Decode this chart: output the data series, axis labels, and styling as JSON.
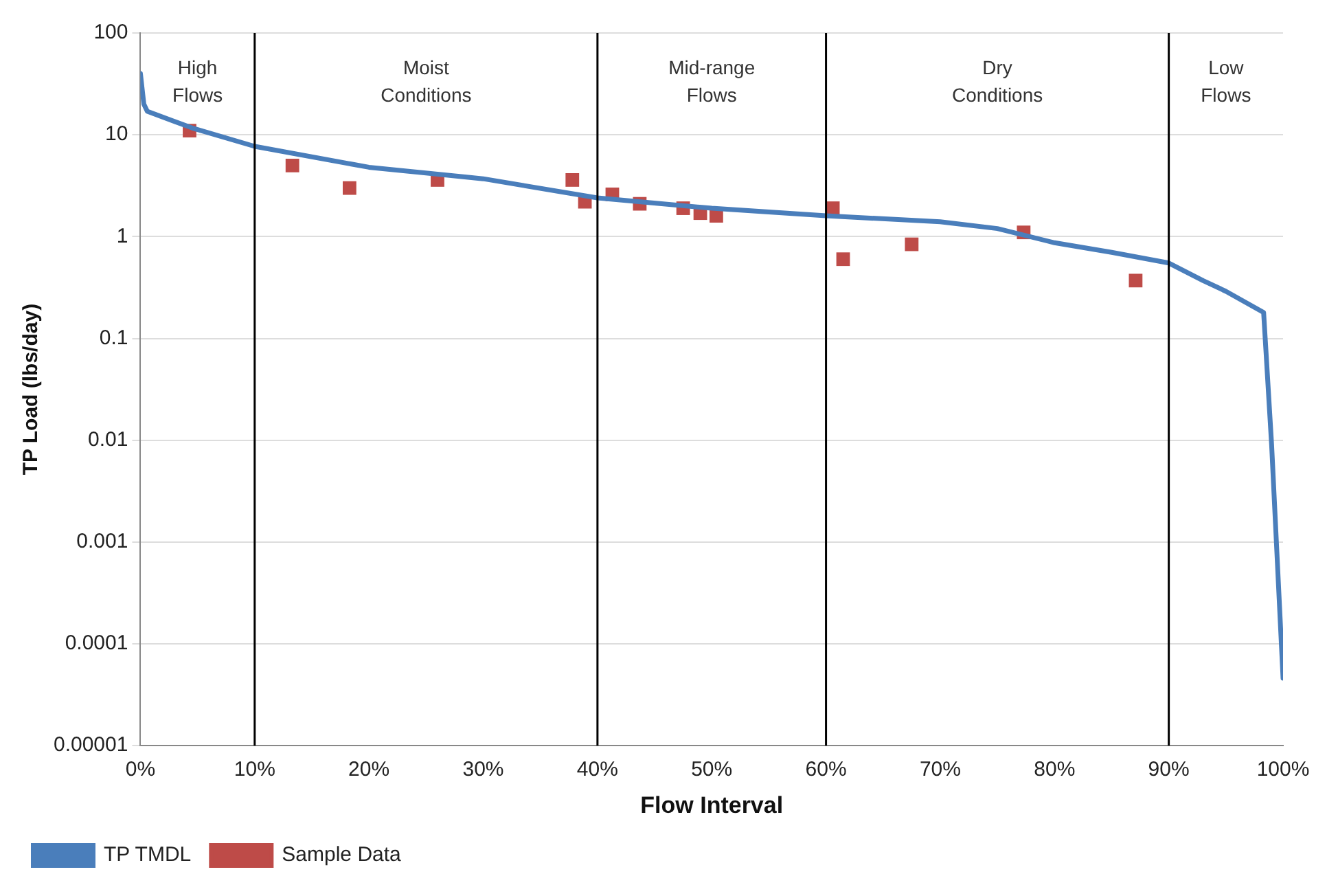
{
  "chart_data": {
    "type": "line",
    "xlabel": "Flow Interval",
    "ylabel": "TP Load (lbs/day)",
    "log": "y",
    "grid": "y",
    "legend": "bottom left",
    "xlim": [
      0,
      100
    ],
    "xticks": [
      {
        "value": 0,
        "label": "0%"
      },
      {
        "value": 10,
        "label": "10%"
      },
      {
        "value": 20,
        "label": "20%"
      },
      {
        "value": 30,
        "label": "30%"
      },
      {
        "value": 40,
        "label": "40%"
      },
      {
        "value": 50,
        "label": "50%"
      },
      {
        "value": 60,
        "label": "60%"
      },
      {
        "value": 70,
        "label": "70%"
      },
      {
        "value": 80,
        "label": "80%"
      },
      {
        "value": 90,
        "label": "90%"
      },
      {
        "value": 100,
        "label": "100%"
      }
    ],
    "ylim": [
      1e-05,
      100
    ],
    "yticks": [
      {
        "value": 1e-05,
        "label": "0.00001"
      },
      0.0001,
      0.001,
      0.01,
      0.1,
      1,
      10,
      100
    ],
    "ref_lines": [
      {
        "axis": "x",
        "value": 10,
        "color": "#000000"
      },
      {
        "axis": "x",
        "value": 40,
        "color": "#000000"
      },
      {
        "axis": "x",
        "value": 60,
        "color": "#000000"
      },
      {
        "axis": "x",
        "value": 90,
        "color": "#000000"
      }
    ],
    "annotations": [
      "High Flows",
      "Moist Conditions",
      "Mid-range Flows",
      "Dry Conditions",
      "Low Flows"
    ],
    "series": [
      {
        "name": "TP TMDL",
        "marker": "none",
        "color": "#4a7ebb",
        "x": [
          0,
          0.3,
          0.6,
          4.5,
          10,
          20,
          30,
          40,
          50,
          60,
          70,
          75,
          80,
          85,
          90,
          93,
          95,
          98.3,
          99,
          100
        ],
        "values": [
          40,
          20,
          17,
          11.7,
          7.7,
          4.8,
          3.7,
          2.4,
          1.9,
          1.6,
          1.4,
          1.2,
          0.87,
          0.7,
          0.55,
          0.37,
          0.29,
          0.18,
          0.009,
          4.6e-05
        ]
      },
      {
        "name": "Sample Data",
        "type": "scatter",
        "marker": "square",
        "color": "#be4b48",
        "x": [
          4.3,
          13.3,
          18.3,
          26,
          37.8,
          38.9,
          41.3,
          43.7,
          47.5,
          49,
          50.4,
          60.6,
          61.5,
          67.5,
          77.3,
          87.1
        ],
        "values": [
          11,
          5,
          3,
          3.6,
          3.6,
          2.2,
          2.6,
          2.1,
          1.9,
          1.7,
          1.6,
          1.9,
          0.6,
          0.84,
          1.1,
          0.37
        ]
      }
    ]
  }
}
